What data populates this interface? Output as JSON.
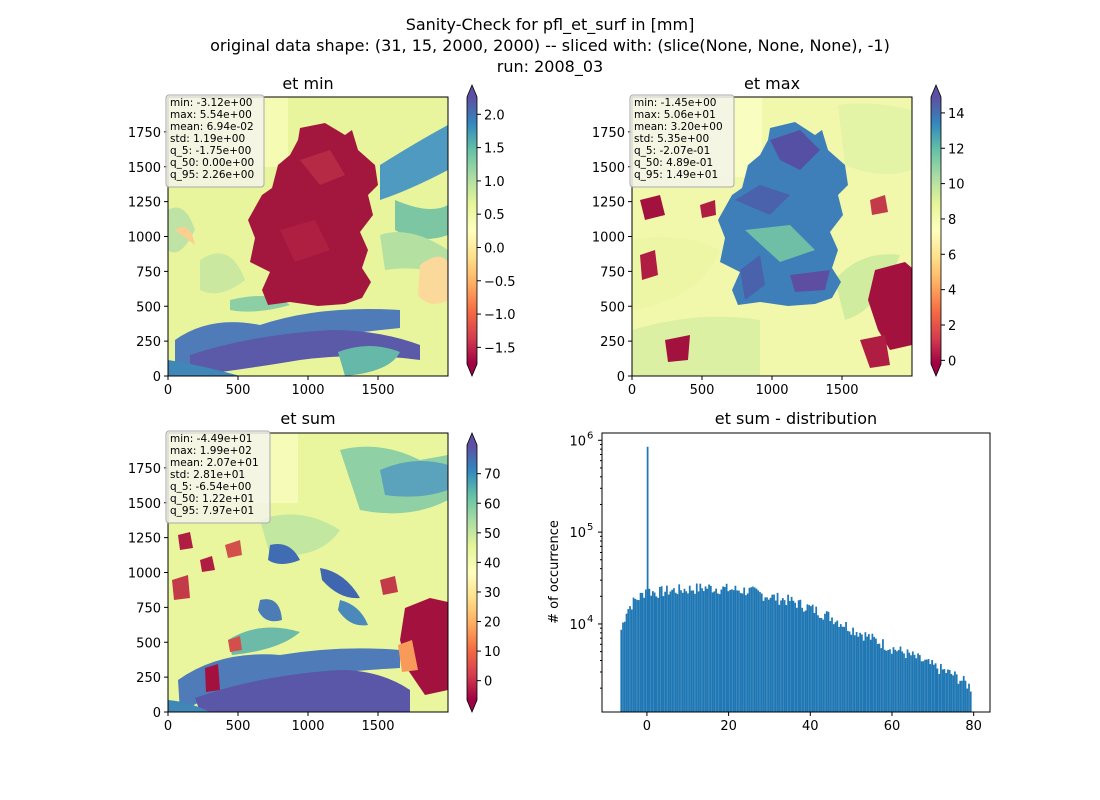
{
  "figure": {
    "title_lines": [
      "Sanity-Check for pfl_et_surf in [mm]",
      "original data shape: (31, 15, 2000, 2000) -- sliced with: (slice(None, None, None), -1)",
      "run: 2008_03"
    ]
  },
  "colors": {
    "spectral": [
      "#9e0142",
      "#d53e4f",
      "#f46d43",
      "#fdae61",
      "#fee08b",
      "#ffffbf",
      "#e6f598",
      "#abdda4",
      "#66c2a5",
      "#3288bd",
      "#5e4fa2"
    ],
    "histogram_bar": "#1f77b4",
    "axes": "#000000",
    "statbox_bg": "#f3f3ea",
    "statbox_border": "#aaaaaa"
  },
  "chart_data": [
    {
      "type": "heatmap",
      "title": "et min",
      "x_ticks": [
        "0",
        "500",
        "1000",
        "1500"
      ],
      "y_ticks": [
        "0",
        "250",
        "500",
        "750",
        "1000",
        "1250",
        "1500",
        "1750"
      ],
      "xlim": [
        0,
        2000
      ],
      "ylim": [
        0,
        2000
      ],
      "colorbar": {
        "range": [
          -1.75,
          2.26
        ],
        "ticks": [
          -1.5,
          -1.0,
          -0.5,
          0.0,
          0.5,
          1.0,
          1.5,
          2.0
        ],
        "tick_labels": [
          "−1.5",
          "−1.0",
          "−0.5",
          "0.0",
          "0.5",
          "1.0",
          "1.5",
          "2.0"
        ],
        "extend": "both"
      },
      "stats": [
        "min: -3.12e+00",
        "max: 5.54e+00",
        "mean: 6.94e-02",
        "std: 1.19e+00",
        "q_5: -1.75e+00",
        "q_50: 0.00e+00",
        "q_95: 2.26e+00"
      ]
    },
    {
      "type": "heatmap",
      "title": "et max",
      "x_ticks": [
        "0",
        "500",
        "1000",
        "1500"
      ],
      "y_ticks": [
        "0",
        "250",
        "500",
        "750",
        "1000",
        "1250",
        "1500",
        "1750"
      ],
      "xlim": [
        0,
        2000
      ],
      "ylim": [
        0,
        2000
      ],
      "colorbar": {
        "range": [
          -0.207,
          14.9
        ],
        "ticks": [
          0,
          2,
          4,
          6,
          8,
          10,
          12,
          14
        ],
        "tick_labels": [
          "0",
          "2",
          "4",
          "6",
          "8",
          "10",
          "12",
          "14"
        ],
        "extend": "both"
      },
      "stats": [
        "min: -1.45e+00",
        "max: 5.06e+01",
        "mean: 3.20e+00",
        "std: 5.35e+00",
        "q_5: -2.07e-01",
        "q_50: 4.89e-01",
        "q_95: 1.49e+01"
      ]
    },
    {
      "type": "heatmap",
      "title": "et sum",
      "x_ticks": [
        "0",
        "500",
        "1000",
        "1500"
      ],
      "y_ticks": [
        "0",
        "250",
        "500",
        "750",
        "1000",
        "1250",
        "1500",
        "1750"
      ],
      "xlim": [
        0,
        2000
      ],
      "ylim": [
        0,
        2000
      ],
      "colorbar": {
        "range": [
          -6.54,
          79.7
        ],
        "ticks": [
          0,
          10,
          20,
          30,
          40,
          50,
          60,
          70
        ],
        "tick_labels": [
          "0",
          "10",
          "20",
          "30",
          "40",
          "50",
          "60",
          "70"
        ],
        "extend": "both"
      },
      "stats": [
        "min: -4.49e+01",
        "max: 1.99e+02",
        "mean: 2.07e+01",
        "std: 2.81e+01",
        "q_5: -6.54e+00",
        "q_50: 1.22e+01",
        "q_95: 7.97e+01"
      ]
    },
    {
      "type": "bar",
      "title": "et sum - distribution",
      "ylabel": "# of occurrence",
      "y_scale": "log",
      "xlim": [
        -11,
        84
      ],
      "ylim": [
        1100,
        1200000
      ],
      "x_ticks": [
        0,
        20,
        40,
        60,
        80
      ],
      "y_ticks": [
        {
          "value": 10000,
          "base": "10",
          "exp": "4"
        },
        {
          "value": 100000,
          "base": "10",
          "exp": "5"
        },
        {
          "value": 1000000,
          "base": "10",
          "exp": "6"
        }
      ],
      "bin_width": 0.43,
      "series": [
        {
          "x": [
            -6.5,
            -5,
            -3,
            -1,
            -0.2,
            0,
            0.5,
            2,
            5,
            10,
            15,
            20,
            25,
            30,
            35,
            40,
            45,
            50,
            55,
            60,
            65,
            70,
            75,
            78,
            79.5
          ],
          "values": [
            8000,
            14000,
            18000,
            21000,
            24000,
            850000,
            23000,
            22000,
            23000,
            24000,
            25000,
            24000,
            23000,
            20000,
            18000,
            15000,
            12000,
            9000,
            7000,
            5500,
            4500,
            3500,
            2800,
            2300,
            2000
          ]
        }
      ]
    }
  ]
}
